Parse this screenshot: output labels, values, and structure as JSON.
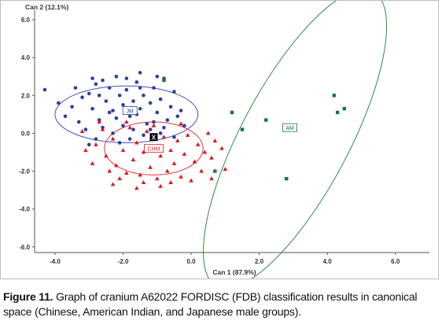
{
  "chart_data": {
    "type": "scatter",
    "xlabel": "Can 1 (87.9%)",
    "ylabel": "Can 2 (12.1%)",
    "xlim": [
      -4.6,
      7.0
    ],
    "ylim": [
      -6.3,
      6.5
    ],
    "x_ticks": [
      "-4.0",
      "-2.0",
      "0.0",
      "2.0",
      "4.0",
      "6.0"
    ],
    "y_ticks": [
      "6.0",
      "4.0",
      "2.0",
      "0.0",
      "-2.0",
      "-4.0",
      "-6.0"
    ],
    "grid": false,
    "colors": {
      "JM": "#2c3ea8",
      "CHM": "#e0141b",
      "AM": "#127a3a",
      "ellipse_JM": "#4a52b3",
      "ellipse_CHM": "#d9363c",
      "ellipse_AM": "#2e8b47",
      "unknown": "#000000"
    },
    "series": [
      {
        "name": "JM",
        "marker": "circle",
        "centroid": [
          -2.0,
          1.0
        ],
        "ellipse": {
          "cx": -1.9,
          "cy": 1.0,
          "rx": 2.1,
          "ry": 1.5,
          "angle": 0
        },
        "points": [
          [
            -4.3,
            2.3
          ],
          [
            -3.2,
            1.9
          ],
          [
            -3.0,
            2.1
          ],
          [
            -2.8,
            2.6
          ],
          [
            -3.5,
            1.4
          ],
          [
            -3.3,
            0.6
          ],
          [
            -2.9,
            1.3
          ],
          [
            -2.7,
            2.0
          ],
          [
            -2.5,
            1.7
          ],
          [
            -2.4,
            2.4
          ],
          [
            -2.3,
            1.2
          ],
          [
            -2.2,
            0.8
          ],
          [
            -2.1,
            2.0
          ],
          [
            -2.0,
            1.5
          ],
          [
            -1.9,
            2.3
          ],
          [
            -1.8,
            0.9
          ],
          [
            -1.7,
            1.7
          ],
          [
            -1.6,
            2.7
          ],
          [
            -1.5,
            1.3
          ],
          [
            -1.4,
            2.0
          ],
          [
            -1.3,
            0.5
          ],
          [
            -1.2,
            1.6
          ],
          [
            -1.1,
            2.4
          ],
          [
            -1.0,
            1.1
          ],
          [
            -0.9,
            1.8
          ],
          [
            -0.8,
            2.9
          ],
          [
            -0.7,
            0.7
          ],
          [
            -0.6,
            1.4
          ],
          [
            -0.5,
            2.2
          ],
          [
            -0.4,
            0.9
          ],
          [
            -2.6,
            0.3
          ],
          [
            -2.3,
            0.0
          ],
          [
            -2.0,
            0.4
          ],
          [
            -1.7,
            0.2
          ],
          [
            -1.4,
            -0.1
          ],
          [
            -1.1,
            0.6
          ],
          [
            -0.8,
            0.3
          ],
          [
            -0.5,
            -0.2
          ],
          [
            -3.1,
            0.2
          ],
          [
            -2.8,
            -0.3
          ],
          [
            -3.4,
            2.4
          ],
          [
            -2.6,
            2.8
          ],
          [
            -2.2,
            3.0
          ],
          [
            -1.9,
            2.9
          ],
          [
            -1.5,
            3.2
          ],
          [
            -1.0,
            3.0
          ],
          [
            -3.7,
            0.9
          ],
          [
            -3.9,
            1.6
          ],
          [
            -2.4,
            1.1
          ],
          [
            -1.6,
            1.0
          ],
          [
            -1.2,
            0.2
          ],
          [
            -0.9,
            0.0
          ],
          [
            -0.3,
            1.2
          ],
          [
            -0.2,
            0.4
          ],
          [
            -3.0,
            -0.6
          ],
          [
            -2.1,
            -0.5
          ],
          [
            -1.5,
            2.4
          ],
          [
            -2.7,
            0.7
          ],
          [
            -1.8,
            -0.3
          ],
          [
            -2.9,
            2.9
          ]
        ]
      },
      {
        "name": "CHM",
        "marker": "triangle",
        "centroid": [
          -1.0,
          -0.8
        ],
        "ellipse": {
          "cx": -1.1,
          "cy": -0.8,
          "rx": 1.45,
          "ry": 1.4,
          "angle": 0
        },
        "points": [
          [
            -3.2,
            0.1
          ],
          [
            -2.8,
            -0.6
          ],
          [
            -2.6,
            0.2
          ],
          [
            -2.5,
            -1.2
          ],
          [
            -2.3,
            -0.3
          ],
          [
            -2.2,
            -1.7
          ],
          [
            -2.0,
            -0.9
          ],
          [
            -1.9,
            -2.1
          ],
          [
            -1.8,
            0.3
          ],
          [
            -1.7,
            -1.4
          ],
          [
            -1.6,
            -0.5
          ],
          [
            -1.5,
            -2.2
          ],
          [
            -1.4,
            -1.0
          ],
          [
            -1.3,
            0.1
          ],
          [
            -1.2,
            -1.8
          ],
          [
            -1.1,
            -0.7
          ],
          [
            -1.0,
            -2.4
          ],
          [
            -0.9,
            -1.2
          ],
          [
            -0.8,
            -0.2
          ],
          [
            -0.7,
            -2.0
          ],
          [
            -0.6,
            -0.9
          ],
          [
            -0.5,
            -1.6
          ],
          [
            -0.4,
            -0.4
          ],
          [
            -0.3,
            -2.3
          ],
          [
            -0.2,
            -1.1
          ],
          [
            -0.1,
            -0.1
          ],
          [
            0.1,
            -1.5
          ],
          [
            0.2,
            -0.6
          ],
          [
            0.3,
            -2.0
          ],
          [
            0.4,
            -1.0
          ],
          [
            0.5,
            0.0
          ],
          [
            0.6,
            -1.3
          ],
          [
            0.7,
            -0.4
          ],
          [
            -2.4,
            -2.0
          ],
          [
            -2.1,
            -2.4
          ],
          [
            -1.4,
            -2.6
          ],
          [
            -0.6,
            -2.6
          ],
          [
            0.0,
            -2.5
          ],
          [
            -2.9,
            -1.6
          ],
          [
            -3.1,
            -0.9
          ],
          [
            -2.7,
            0.6
          ],
          [
            -1.9,
            0.6
          ],
          [
            -1.1,
            0.4
          ],
          [
            -0.3,
            0.5
          ],
          [
            0.9,
            -0.8
          ],
          [
            1.0,
            -1.9
          ],
          [
            -1.6,
            -2.9
          ],
          [
            -0.9,
            -2.8
          ],
          [
            -2.3,
            -2.7
          ],
          [
            0.6,
            -2.4
          ]
        ]
      },
      {
        "name": "AM",
        "marker": "square",
        "centroid": [
          2.9,
          0.3
        ],
        "ellipse": {
          "cx": 3.05,
          "cy": -0.3,
          "rx": 4.9,
          "ry": 2.85,
          "angle": -62
        },
        "points": [
          [
            1.2,
            1.1
          ],
          [
            1.5,
            0.2
          ],
          [
            2.2,
            0.7
          ],
          [
            2.8,
            -2.4
          ],
          [
            4.2,
            2.0
          ],
          [
            4.3,
            1.1
          ],
          [
            4.5,
            1.3
          ],
          [
            0.7,
            -2.0
          ],
          [
            -0.8,
            2.8
          ]
        ]
      }
    ],
    "annotations": [
      {
        "text": "JM",
        "x": -1.8,
        "y": 1.2
      },
      {
        "text": "CHM",
        "x": -1.1,
        "y": -0.8
      },
      {
        "text": "AM",
        "x": 2.9,
        "y": 0.3
      },
      {
        "text": "X",
        "x": -1.1,
        "y": -0.2
      }
    ]
  },
  "caption": {
    "label": "Figure 11.",
    "text": "Graph of cranium A62022 FORDISC (FDB) classification results in canonical space (Chinese, American Indian, and Japanese male groups)."
  }
}
